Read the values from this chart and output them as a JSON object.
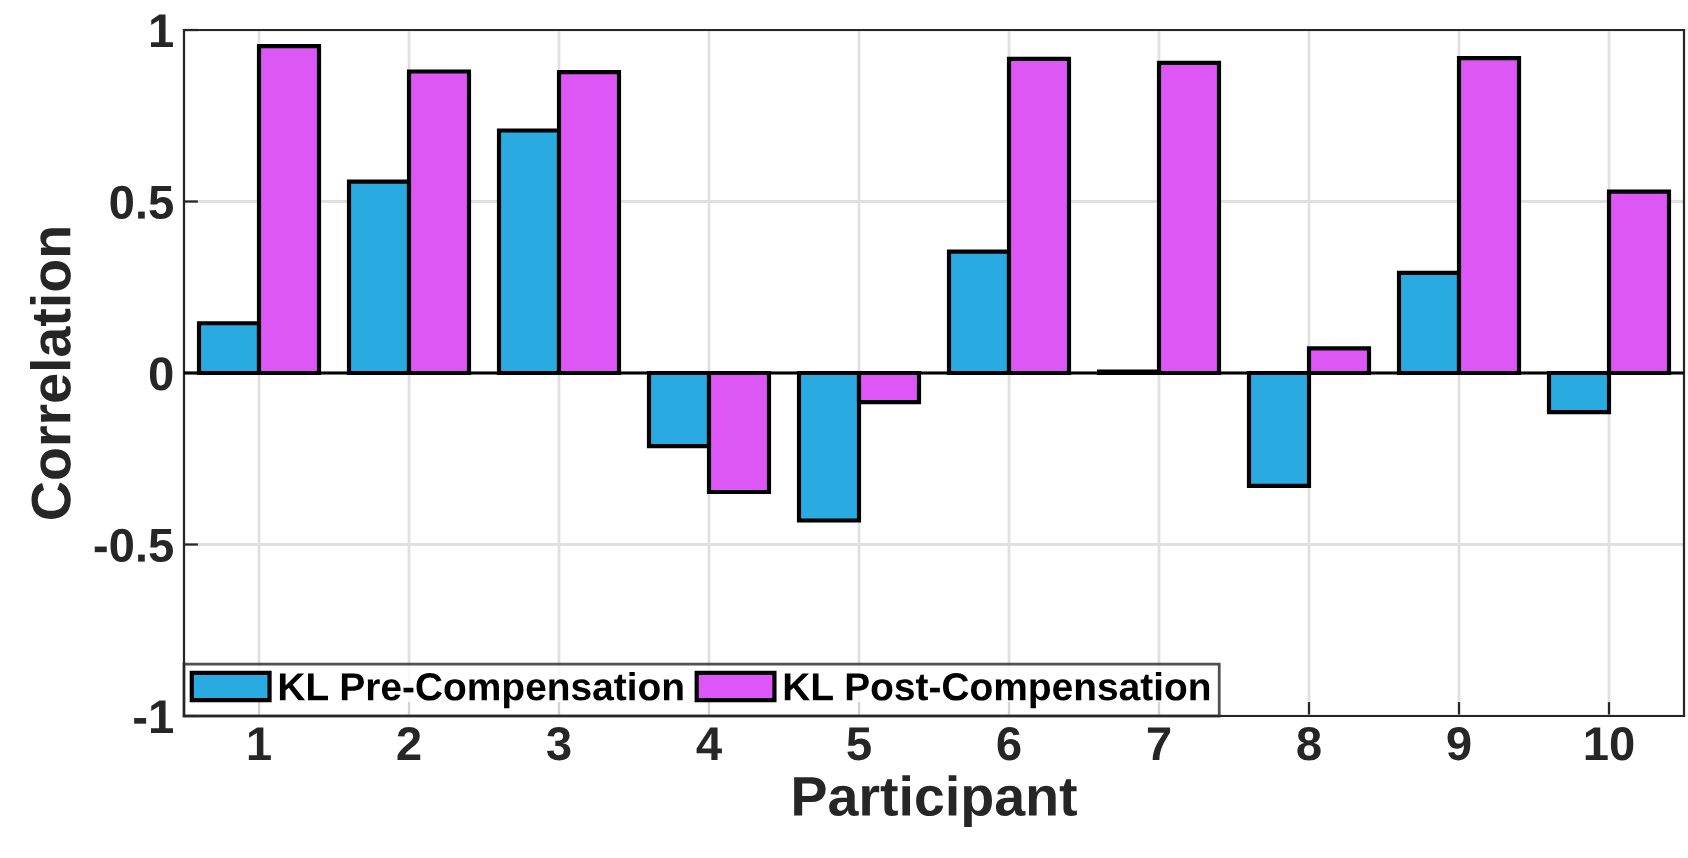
{
  "chart_data": {
    "type": "bar",
    "xlabel": "Participant",
    "ylabel": "Correlation",
    "categories": [
      "1",
      "2",
      "3",
      "4",
      "5",
      "6",
      "7",
      "8",
      "9",
      "10"
    ],
    "series": [
      {
        "name": "KL Pre-Compensation",
        "color": "#29abe2",
        "values": [
          0.145,
          0.558,
          0.707,
          -0.213,
          -0.43,
          0.354,
          0.004,
          -0.329,
          0.292,
          -0.114
        ]
      },
      {
        "name": "KL Post-Compensation",
        "color": "#dc57f5",
        "values": [
          0.953,
          0.879,
          0.877,
          -0.347,
          -0.085,
          0.916,
          0.904,
          0.072,
          0.918,
          0.529
        ]
      }
    ],
    "ylim": [
      -1,
      1
    ],
    "yticks": [
      -1,
      -0.5,
      0,
      0.5,
      1
    ],
    "grid": true,
    "legend": "bottom left"
  }
}
